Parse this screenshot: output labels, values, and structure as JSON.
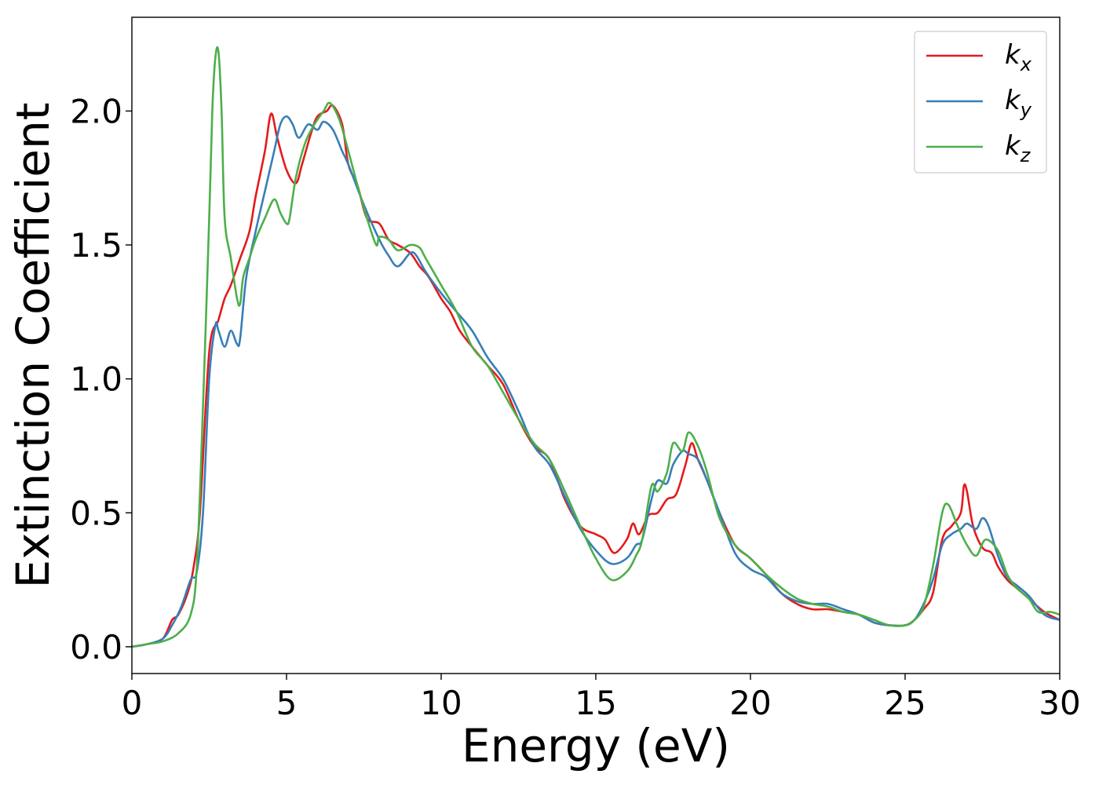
{
  "chart_data": {
    "type": "line",
    "title": "",
    "xlabel": "Energy (eV)",
    "ylabel": "Extinction Coefficient",
    "xlim": [
      0,
      30
    ],
    "ylim": [
      -0.1,
      2.35
    ],
    "xticks": [
      0,
      5,
      10,
      15,
      20,
      25,
      30
    ],
    "xtick_labels": [
      "0",
      "5",
      "10",
      "15",
      "20",
      "25",
      "30"
    ],
    "yticks": [
      0.0,
      0.5,
      1.0,
      1.5,
      2.0
    ],
    "ytick_labels": [
      "0.0",
      "0.5",
      "1.0",
      "1.5",
      "2.0"
    ],
    "grid": false,
    "legend_position": "top-right",
    "series": [
      {
        "name": "k_x",
        "label_main": "k",
        "label_sub": "x",
        "color": "#e41a1c",
        "x": [
          0,
          0.5,
          1.0,
          1.3,
          1.5,
          1.8,
          2.0,
          2.2,
          2.5,
          2.8,
          3.0,
          3.2,
          3.5,
          3.8,
          4.0,
          4.3,
          4.5,
          4.7,
          5.0,
          5.3,
          5.5,
          5.8,
          6.0,
          6.3,
          6.5,
          6.8,
          7.0,
          7.3,
          7.6,
          8.0,
          8.3,
          8.6,
          9.0,
          9.3,
          9.6,
          10.0,
          10.3,
          10.6,
          11.0,
          11.5,
          12.0,
          12.5,
          13.0,
          13.5,
          14.0,
          14.5,
          15.0,
          15.3,
          15.6,
          16.0,
          16.2,
          16.4,
          16.7,
          17.0,
          17.3,
          17.6,
          17.9,
          18.1,
          18.3,
          18.6,
          19.0,
          19.5,
          20.0,
          20.5,
          21.0,
          21.5,
          22.0,
          22.5,
          23.0,
          23.5,
          24.0,
          24.5,
          25.0,
          25.3,
          25.6,
          25.9,
          26.2,
          26.5,
          26.8,
          26.9,
          27.0,
          27.2,
          27.5,
          27.8,
          28.0,
          28.3,
          28.6,
          29.0,
          29.5,
          30.0
        ],
        "y": [
          0.0,
          0.01,
          0.03,
          0.1,
          0.12,
          0.2,
          0.3,
          0.5,
          1.1,
          1.22,
          1.3,
          1.35,
          1.45,
          1.55,
          1.68,
          1.85,
          1.99,
          1.9,
          1.78,
          1.73,
          1.8,
          1.92,
          1.98,
          2.0,
          2.02,
          1.95,
          1.8,
          1.72,
          1.6,
          1.58,
          1.52,
          1.5,
          1.47,
          1.42,
          1.38,
          1.3,
          1.25,
          1.18,
          1.12,
          1.05,
          0.98,
          0.85,
          0.75,
          0.7,
          0.55,
          0.45,
          0.42,
          0.4,
          0.35,
          0.4,
          0.46,
          0.42,
          0.49,
          0.5,
          0.55,
          0.57,
          0.68,
          0.76,
          0.7,
          0.62,
          0.5,
          0.38,
          0.33,
          0.27,
          0.2,
          0.16,
          0.14,
          0.14,
          0.13,
          0.12,
          0.09,
          0.08,
          0.08,
          0.1,
          0.14,
          0.2,
          0.4,
          0.45,
          0.5,
          0.6,
          0.58,
          0.45,
          0.37,
          0.35,
          0.3,
          0.25,
          0.22,
          0.18,
          0.13,
          0.1
        ]
      },
      {
        "name": "k_y",
        "label_main": "k",
        "label_sub": "y",
        "color": "#377eb8",
        "x": [
          0,
          0.5,
          1.0,
          1.3,
          1.6,
          1.9,
          2.1,
          2.3,
          2.5,
          2.7,
          2.8,
          3.0,
          3.2,
          3.4,
          3.5,
          3.7,
          4.0,
          4.3,
          4.6,
          4.8,
          5.0,
          5.2,
          5.4,
          5.7,
          6.0,
          6.2,
          6.5,
          6.8,
          7.0,
          7.5,
          8.0,
          8.3,
          8.6,
          9.0,
          9.2,
          9.5,
          10.0,
          10.5,
          11.0,
          11.5,
          12.0,
          12.5,
          13.0,
          13.5,
          14.0,
          14.5,
          15.0,
          15.5,
          16.0,
          16.3,
          16.5,
          16.8,
          17.0,
          17.3,
          17.5,
          17.8,
          18.0,
          18.3,
          18.6,
          19.0,
          19.5,
          20.0,
          20.5,
          21.0,
          21.5,
          22.0,
          22.5,
          23.0,
          23.5,
          24.0,
          24.5,
          25.0,
          25.3,
          25.6,
          25.9,
          26.2,
          26.5,
          26.8,
          27.0,
          27.3,
          27.5,
          27.7,
          28.0,
          28.3,
          28.6,
          29.0,
          29.5,
          30.0
        ],
        "y": [
          0.0,
          0.01,
          0.03,
          0.08,
          0.15,
          0.25,
          0.28,
          0.5,
          1.0,
          1.2,
          1.18,
          1.12,
          1.18,
          1.13,
          1.15,
          1.38,
          1.55,
          1.7,
          1.85,
          1.95,
          1.98,
          1.95,
          1.9,
          1.95,
          1.93,
          1.96,
          1.93,
          1.85,
          1.8,
          1.65,
          1.52,
          1.46,
          1.42,
          1.47,
          1.46,
          1.4,
          1.32,
          1.25,
          1.18,
          1.08,
          1.0,
          0.88,
          0.75,
          0.68,
          0.56,
          0.44,
          0.36,
          0.31,
          0.33,
          0.38,
          0.4,
          0.55,
          0.62,
          0.61,
          0.68,
          0.73,
          0.72,
          0.7,
          0.62,
          0.5,
          0.35,
          0.29,
          0.26,
          0.2,
          0.17,
          0.16,
          0.16,
          0.14,
          0.12,
          0.09,
          0.08,
          0.08,
          0.1,
          0.16,
          0.25,
          0.38,
          0.42,
          0.44,
          0.46,
          0.44,
          0.48,
          0.45,
          0.34,
          0.26,
          0.23,
          0.19,
          0.12,
          0.1
        ]
      },
      {
        "name": "k_z",
        "label_main": "k",
        "label_sub": "z",
        "color": "#4daf4a",
        "x": [
          0,
          0.5,
          1.0,
          1.5,
          1.9,
          2.1,
          2.3,
          2.5,
          2.6,
          2.7,
          2.8,
          2.9,
          3.0,
          3.2,
          3.4,
          3.5,
          3.6,
          3.8,
          4.0,
          4.3,
          4.6,
          4.8,
          5.0,
          5.1,
          5.3,
          5.6,
          5.9,
          6.2,
          6.4,
          6.7,
          7.0,
          7.3,
          7.6,
          7.9,
          8.0,
          8.3,
          8.6,
          9.0,
          9.3,
          9.5,
          10.0,
          10.5,
          11.0,
          11.5,
          12.0,
          12.5,
          13.0,
          13.5,
          14.0,
          14.5,
          15.0,
          15.5,
          16.0,
          16.3,
          16.5,
          16.8,
          17.0,
          17.3,
          17.5,
          17.8,
          18.0,
          18.3,
          18.6,
          19.0,
          19.5,
          20.0,
          20.5,
          21.0,
          21.5,
          22.0,
          22.5,
          23.0,
          23.5,
          24.0,
          24.5,
          25.0,
          25.3,
          25.6,
          25.9,
          26.2,
          26.4,
          26.7,
          27.0,
          27.3,
          27.6,
          28.0,
          28.3,
          28.6,
          29.0,
          29.3,
          29.7,
          30.0
        ],
        "y": [
          0.0,
          0.01,
          0.02,
          0.05,
          0.12,
          0.3,
          0.9,
          1.6,
          2.0,
          2.2,
          2.22,
          2.0,
          1.6,
          1.45,
          1.3,
          1.28,
          1.38,
          1.45,
          1.52,
          1.6,
          1.67,
          1.62,
          1.58,
          1.6,
          1.75,
          1.88,
          1.95,
          2.0,
          2.03,
          1.97,
          1.85,
          1.72,
          1.6,
          1.5,
          1.53,
          1.52,
          1.48,
          1.5,
          1.49,
          1.45,
          1.35,
          1.25,
          1.12,
          1.05,
          0.95,
          0.85,
          0.76,
          0.7,
          0.58,
          0.45,
          0.33,
          0.25,
          0.28,
          0.34,
          0.4,
          0.6,
          0.58,
          0.65,
          0.76,
          0.73,
          0.8,
          0.75,
          0.65,
          0.48,
          0.38,
          0.33,
          0.27,
          0.22,
          0.18,
          0.16,
          0.15,
          0.13,
          0.12,
          0.1,
          0.08,
          0.08,
          0.1,
          0.15,
          0.3,
          0.5,
          0.53,
          0.45,
          0.38,
          0.34,
          0.4,
          0.36,
          0.27,
          0.22,
          0.18,
          0.13,
          0.13,
          0.12
        ]
      }
    ]
  }
}
